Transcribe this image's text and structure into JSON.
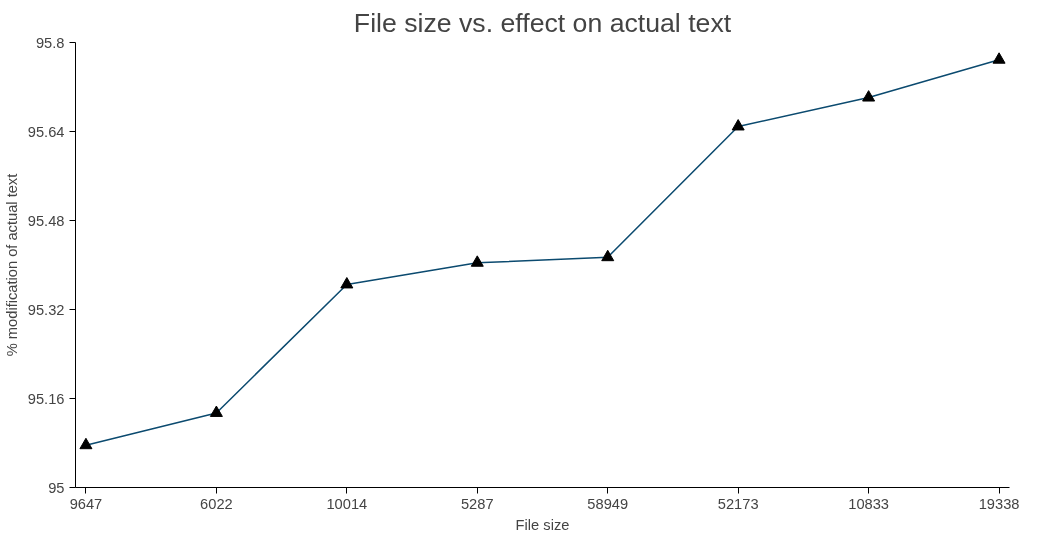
{
  "chart_data": {
    "type": "line",
    "title": "File size vs. effect on actual text",
    "xlabel": "File size",
    "ylabel": "% modification of actual text",
    "categories": [
      "9647",
      "6022",
      "10014",
      "5287",
      "58949",
      "52173",
      "10833",
      "19338"
    ],
    "series": [
      {
        "color": "#0b4a6f",
        "values": [
          95.076,
          95.134,
          95.365,
          95.404,
          95.414,
          95.649,
          95.701,
          95.769
        ]
      }
    ],
    "ylim": [
      95,
      95.8
    ],
    "yticks": [
      95,
      95.16,
      95.32,
      95.48,
      95.64,
      95.8
    ],
    "grid": false,
    "marker": "triangle",
    "line_style": "solid"
  }
}
